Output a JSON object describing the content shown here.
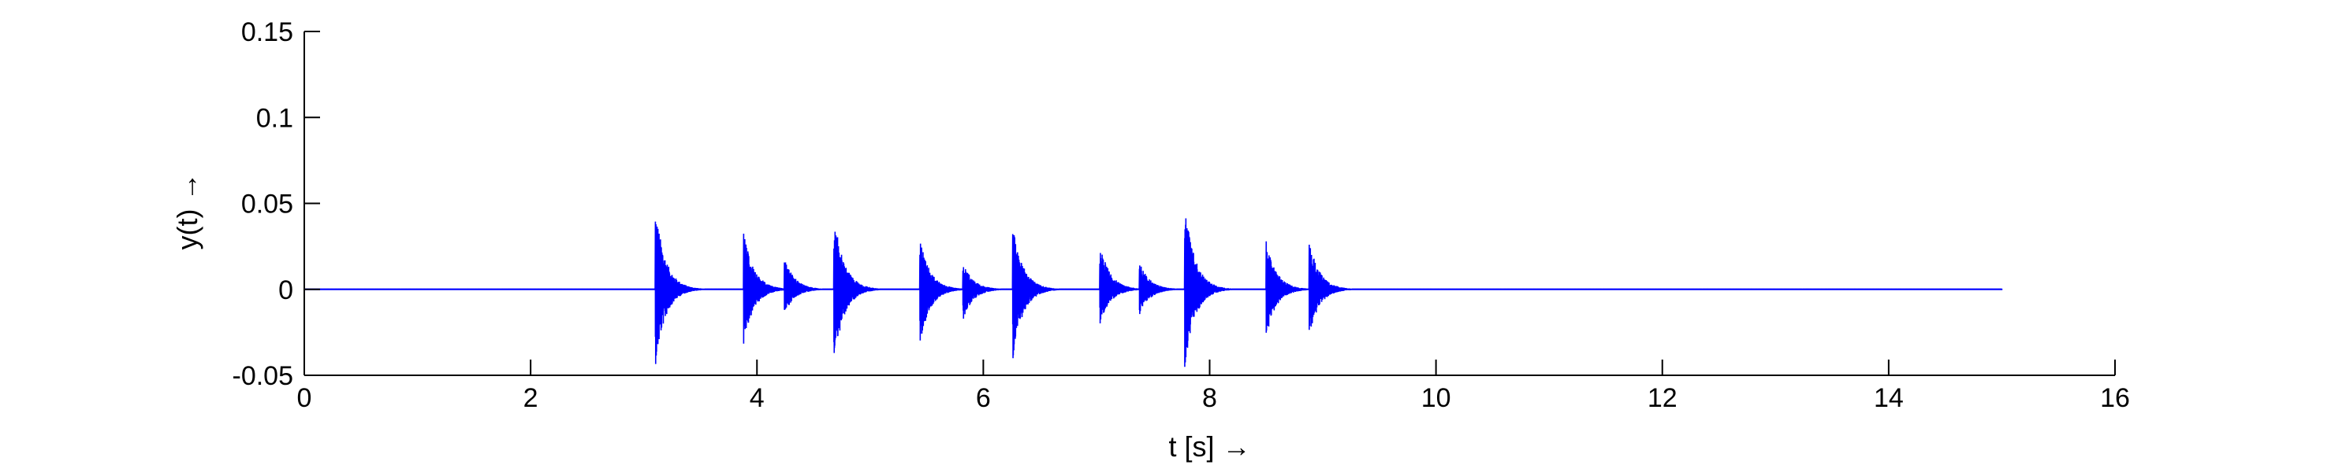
{
  "chart_data": {
    "type": "line",
    "title": "",
    "xlabel": "t [s] →",
    "ylabel": "y(t)  →",
    "xlim": [
      0,
      16
    ],
    "ylim": [
      -0.05,
      0.15
    ],
    "xticks": [
      0,
      2,
      4,
      6,
      8,
      10,
      12,
      14,
      16
    ],
    "xtick_labels": [
      "0",
      "2",
      "4",
      "6",
      "8",
      "10",
      "12",
      "14",
      "16"
    ],
    "yticks": [
      -0.05,
      0,
      0.05,
      0.1,
      0.15
    ],
    "ytick_labels": [
      "-0.05",
      "0",
      "0.05",
      "0.1",
      "0.15"
    ],
    "grid": false,
    "legend": "none",
    "series": [
      {
        "color": "#0000ff",
        "x_start": 0,
        "x_end": 15.0,
        "baseline": 0,
        "events": [
          {
            "t": 3.1,
            "peak": 0.05,
            "trough": -0.046
          },
          {
            "t": 3.88,
            "peak": 0.035,
            "trough": -0.034
          },
          {
            "t": 4.24,
            "peak": 0.019,
            "trough": -0.015
          },
          {
            "t": 4.68,
            "peak": 0.044,
            "trough": -0.043
          },
          {
            "t": 5.44,
            "peak": 0.03,
            "trough": -0.032
          },
          {
            "t": 5.82,
            "peak": 0.016,
            "trough": -0.018
          },
          {
            "t": 6.26,
            "peak": 0.038,
            "trough": -0.042
          },
          {
            "t": 7.03,
            "peak": 0.027,
            "trough": -0.022
          },
          {
            "t": 7.38,
            "peak": 0.016,
            "trough": -0.015
          },
          {
            "t": 7.78,
            "peak": 0.05,
            "trough": -0.046
          },
          {
            "t": 8.5,
            "peak": 0.028,
            "trough": -0.028
          },
          {
            "t": 8.88,
            "peak": 0.029,
            "trough": -0.027
          }
        ]
      }
    ]
  }
}
